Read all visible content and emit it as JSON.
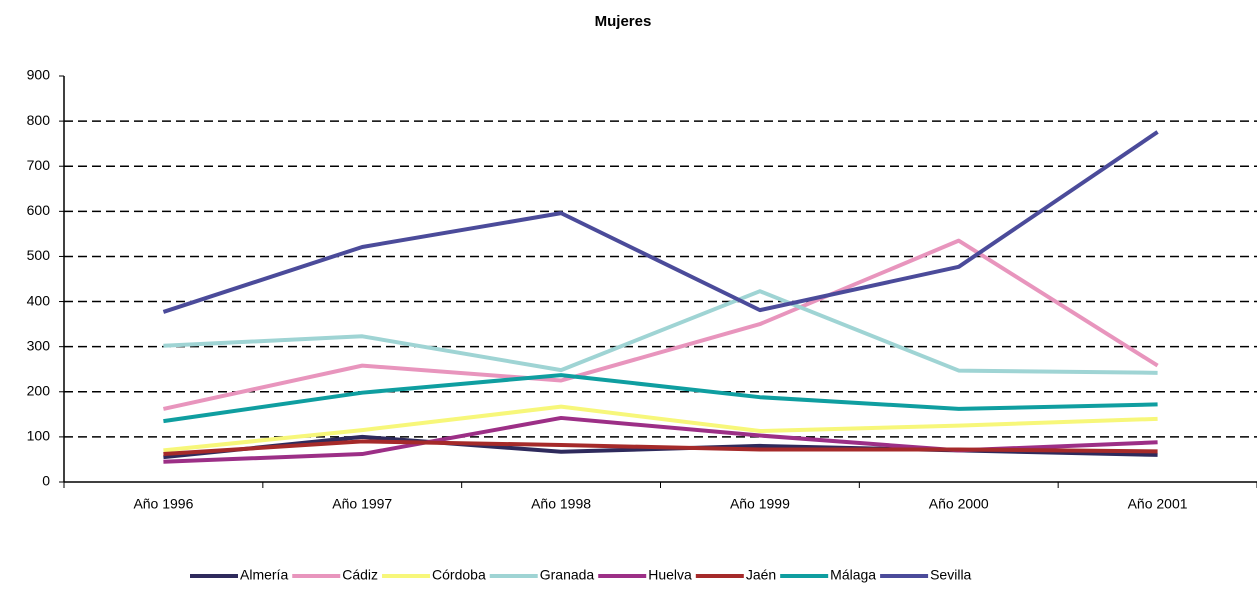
{
  "chart_data": {
    "type": "line",
    "title": "Mujeres",
    "categories": [
      "Año 1996",
      "Año 1997",
      "Año 1998",
      "Año 1999",
      "Año 2000",
      "Año 2001"
    ],
    "series": [
      {
        "name": "Almería",
        "color": "#2e2a5c",
        "values": [
          55,
          100,
          67,
          80,
          70,
          60
        ]
      },
      {
        "name": "Cádiz",
        "color": "#e895bd",
        "values": [
          162,
          258,
          225,
          350,
          535,
          258
        ]
      },
      {
        "name": "Córdoba",
        "color": "#f7f77a",
        "values": [
          70,
          115,
          167,
          113,
          125,
          140
        ]
      },
      {
        "name": "Granada",
        "color": "#9fd4d4",
        "values": [
          302,
          323,
          248,
          423,
          247,
          242
        ]
      },
      {
        "name": "Huelva",
        "color": "#9c2f86",
        "values": [
          45,
          62,
          142,
          103,
          70,
          88
        ]
      },
      {
        "name": "Jaén",
        "color": "#a52a2a",
        "values": [
          62,
          90,
          82,
          72,
          72,
          68
        ]
      },
      {
        "name": "Málaga",
        "color": "#0f9ea0",
        "values": [
          135,
          198,
          237,
          188,
          162,
          172
        ]
      },
      {
        "name": "Sevilla",
        "color": "#4b4b9a",
        "values": [
          377,
          521,
          596,
          381,
          477,
          776
        ]
      }
    ],
    "ylim": [
      0,
      900
    ],
    "yticks": [
      0,
      100,
      200,
      300,
      400,
      500,
      600,
      700,
      800,
      900
    ],
    "grid": true,
    "legend": "bottom"
  }
}
